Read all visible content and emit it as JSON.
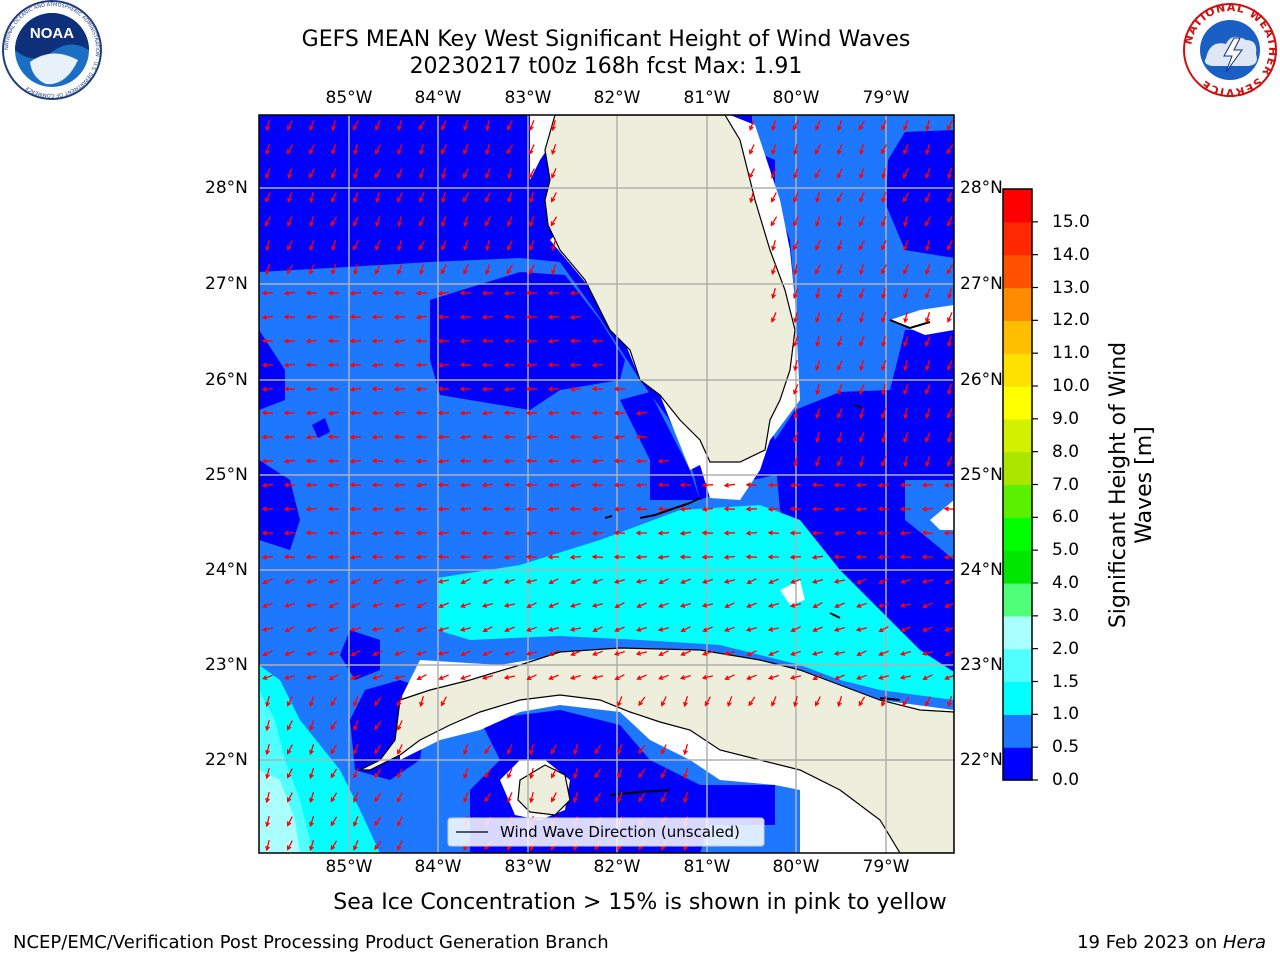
{
  "header": {
    "title_line1": "GEFS MEAN Key West Significant Height of Wind Waves",
    "title_line2": "20230217 t00z 168h fcst   Max: 1.91"
  },
  "logos": {
    "noaa_text": "NOAA",
    "noaa_ring_text": "NATIONAL OCEANIC AND ATMOSPHERIC ADMINISTRATION · U.S. DEPARTMENT OF COMMERCE",
    "nws_ring_text": "NATIONAL WEATHER SERVICE"
  },
  "map": {
    "lon_ticks": [
      "85°W",
      "84°W",
      "83°W",
      "82°W",
      "81°W",
      "80°W",
      "79°W"
    ],
    "lat_ticks": [
      "28°N",
      "27°N",
      "26°N",
      "25°N",
      "24°N",
      "23°N",
      "22°N"
    ],
    "legend_label": "Wind Wave Direction (unscaled)",
    "colors": {
      "land": "#eeeedc",
      "grid": "#b0b0b0",
      "arrow": "#ff0000",
      "coast": "#000000"
    }
  },
  "colorbar": {
    "label_line1": "Significant Height of Wind",
    "label_line2": "Waves [m]",
    "ticks": [
      "0.0",
      "0.5",
      "1.0",
      "1.5",
      "2.0",
      "3.0",
      "4.0",
      "5.0",
      "6.0",
      "7.0",
      "8.0",
      "9.0",
      "10.0",
      "11.0",
      "12.0",
      "13.0",
      "14.0",
      "15.0"
    ],
    "colors": [
      "#0000ff",
      "#1e78ff",
      "#00ffff",
      "#50ffff",
      "#aaffff",
      "#50ff78",
      "#00e600",
      "#00ff00",
      "#5af000",
      "#aae600",
      "#d2f000",
      "#ffff00",
      "#ffe100",
      "#ffbe00",
      "#ff8c00",
      "#ff5000",
      "#ff2800",
      "#ff0000"
    ]
  },
  "caption": "Sea Ice Concentration > 15% is shown in pink to yellow",
  "footer": {
    "left": "NCEP/EMC/Verification Post Processing Product Generation Branch",
    "date": "19 Feb 2023 on ",
    "machine": "Hera"
  }
}
